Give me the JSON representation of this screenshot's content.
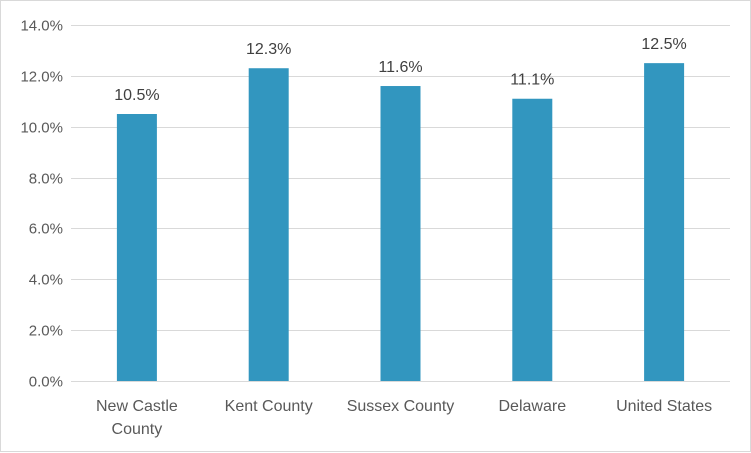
{
  "chart_data": {
    "type": "bar",
    "title": "",
    "xlabel": "",
    "ylabel": "",
    "categories": [
      [
        "New Castle",
        "County"
      ],
      [
        "Kent County"
      ],
      [
        "Sussex County"
      ],
      [
        "Delaware"
      ],
      [
        "United States"
      ]
    ],
    "values": [
      10.5,
      12.3,
      11.6,
      11.1,
      12.5
    ],
    "data_labels": [
      "10.5%",
      "12.3%",
      "11.6%",
      "11.1%",
      "12.5%"
    ],
    "ylim": [
      0,
      14
    ],
    "yticks": [
      0,
      2,
      4,
      6,
      8,
      10,
      12,
      14
    ],
    "ytick_labels": [
      "0.0%",
      "2.0%",
      "4.0%",
      "6.0%",
      "8.0%",
      "10.0%",
      "12.0%",
      "14.0%"
    ],
    "grid": true,
    "legend": false,
    "bar_color": "#3296bf",
    "grid_color": "#d9d9d9"
  }
}
